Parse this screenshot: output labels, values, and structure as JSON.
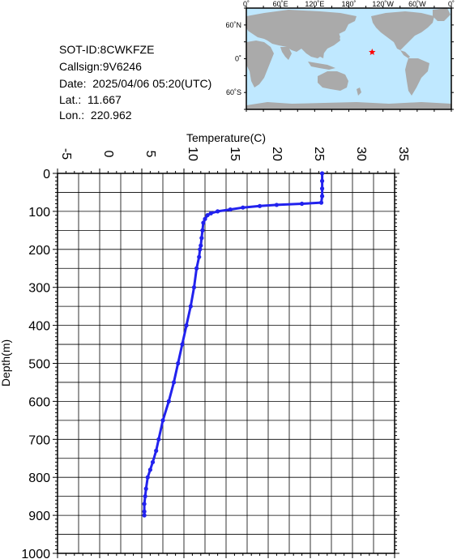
{
  "info": {
    "sot_id": "SOT-ID:8CWKFZE",
    "callsign": "Callsign:9V6246",
    "date": "Date:  2025/04/06 05:20(UTC)",
    "lat": "Lat.:  11.667",
    "lon": "Lon.:  220.962"
  },
  "map": {
    "top_labels": [
      "0˚",
      "60˚E",
      "120˚E",
      "180˚",
      "120˚W",
      "60˚W",
      "0˚"
    ],
    "left_labels": [
      "60˚N",
      "0˚",
      "60˚S"
    ],
    "ocean_color": "#bfe8ff",
    "land_color": "#aaaaaa",
    "marker": {
      "lat": 11.667,
      "lon": 220.962,
      "color": "#ff0000",
      "icon": "star-icon"
    }
  },
  "chart_data": {
    "type": "line",
    "xlabel": "Temperature(C)",
    "ylabel": "Depth(m)",
    "xlim": [
      -5,
      35
    ],
    "ylim": [
      1000,
      0
    ],
    "x_ticks": [
      -5,
      0,
      5,
      10,
      15,
      20,
      25,
      30,
      35
    ],
    "y_ticks": [
      0,
      100,
      200,
      300,
      400,
      500,
      600,
      700,
      800,
      900,
      1000
    ],
    "grid": true,
    "series_color": "#2222ee",
    "series": [
      {
        "name": "",
        "x": [
          26.4,
          26.4,
          26.4,
          26.4,
          26.3,
          24.0,
          21.0,
          19.0,
          17.0,
          15.5,
          14.0,
          13.2,
          12.8,
          12.5,
          12.3,
          12.2,
          12.1,
          12.0,
          11.9,
          11.8,
          11.5,
          11.2,
          10.8,
          10.3,
          9.8,
          9.3,
          8.8,
          8.2,
          7.5,
          7.0,
          6.7,
          6.3,
          6.0,
          5.7,
          5.5,
          5.4,
          5.3,
          5.3,
          5.3
        ],
        "y": [
          0,
          20,
          40,
          60,
          77,
          80,
          83,
          86,
          90,
          95,
          100,
          105,
          110,
          120,
          130,
          150,
          170,
          190,
          200,
          220,
          250,
          300,
          350,
          400,
          450,
          500,
          550,
          600,
          650,
          700,
          730,
          760,
          780,
          800,
          830,
          850,
          870,
          890,
          900
        ]
      }
    ]
  }
}
